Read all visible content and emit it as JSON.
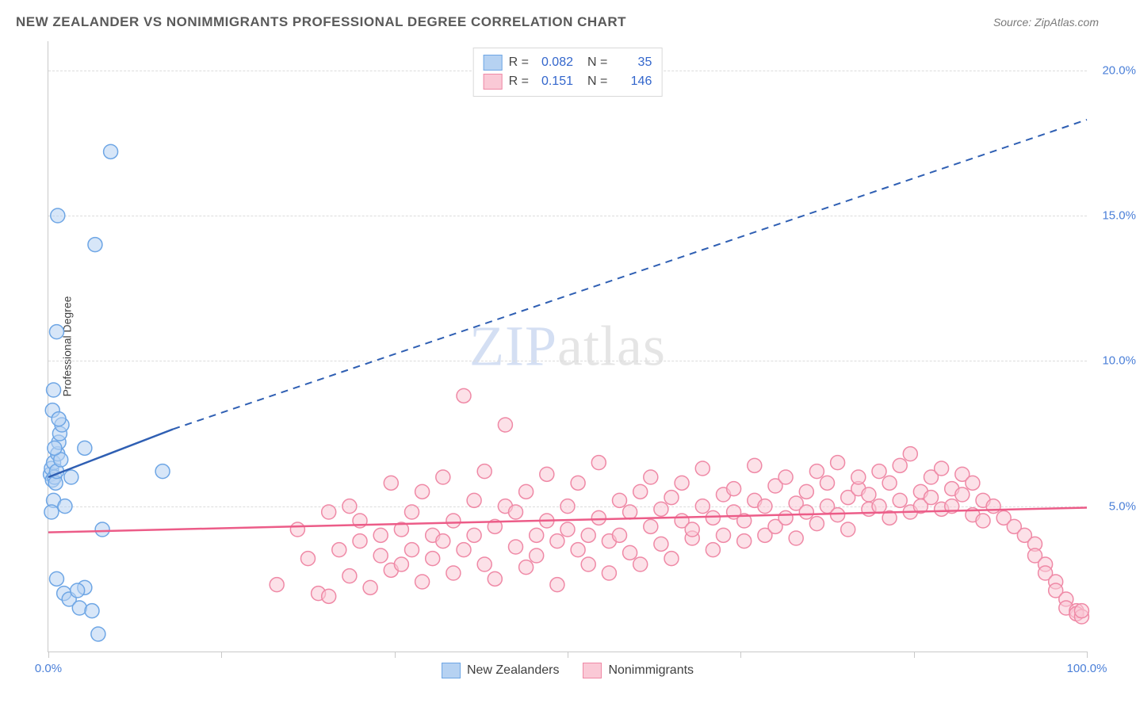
{
  "header": {
    "title": "NEW ZEALANDER VS NONIMMIGRANTS PROFESSIONAL DEGREE CORRELATION CHART",
    "source": "Source: ZipAtlas.com"
  },
  "watermark": {
    "prefix": "ZIP",
    "suffix": "atlas"
  },
  "chart": {
    "type": "scatter",
    "background_color": "#ffffff",
    "grid_color": "#dcdcdc",
    "border_color": "#c9c9c9",
    "xlim": [
      0,
      100
    ],
    "ylim": [
      0,
      21
    ],
    "x_ticks_major": [
      0,
      16.67,
      33.33,
      50,
      66.67,
      83.33,
      100
    ],
    "x_tick_labels": [
      {
        "pos": 0,
        "label": "0.0%"
      },
      {
        "pos": 100,
        "label": "100.0%"
      }
    ],
    "y_tick_labels": [
      {
        "pos": 5,
        "label": "5.0%"
      },
      {
        "pos": 10,
        "label": "10.0%"
      },
      {
        "pos": 15,
        "label": "15.0%"
      },
      {
        "pos": 20,
        "label": "20.0%"
      }
    ],
    "y_axis_label": "Professional Degree",
    "label_fontsize": 14,
    "tick_color": "#4a7fd8",
    "tick_fontsize": 15,
    "marker_radius": 9,
    "marker_stroke_width": 1.5,
    "series": [
      {
        "id": "nz",
        "name": "New Zealanders",
        "fill": "#b6d2f2",
        "stroke": "#6ea6e5",
        "fill_opacity": 0.55,
        "R": "0.082",
        "N": "35",
        "trend": {
          "solid": {
            "x1": 0,
            "y1": 6.0,
            "x2": 12,
            "y2": 7.65
          },
          "dashed": {
            "x1": 12,
            "y1": 7.65,
            "x2": 100,
            "y2": 18.3
          },
          "color": "#2f5fb3",
          "width": 2.5,
          "dash": "9,7"
        },
        "points": [
          [
            0.2,
            6.1
          ],
          [
            0.3,
            6.3
          ],
          [
            0.4,
            5.9
          ],
          [
            0.5,
            6.5
          ],
          [
            0.6,
            6.0
          ],
          [
            0.7,
            5.8
          ],
          [
            0.8,
            6.2
          ],
          [
            0.9,
            6.8
          ],
          [
            1.0,
            7.2
          ],
          [
            1.1,
            7.5
          ],
          [
            1.3,
            7.8
          ],
          [
            0.4,
            8.3
          ],
          [
            1.0,
            8.0
          ],
          [
            0.5,
            5.2
          ],
          [
            0.3,
            4.8
          ],
          [
            1.6,
            5.0
          ],
          [
            2.2,
            6.0
          ],
          [
            3.5,
            7.0
          ],
          [
            5.2,
            4.2
          ],
          [
            0.8,
            2.5
          ],
          [
            1.5,
            2.0
          ],
          [
            2.0,
            1.8
          ],
          [
            3.0,
            1.5
          ],
          [
            4.2,
            1.4
          ],
          [
            3.5,
            2.2
          ],
          [
            2.8,
            2.1
          ],
          [
            4.8,
            0.6
          ],
          [
            0.5,
            9.0
          ],
          [
            0.8,
            11.0
          ],
          [
            0.9,
            15.0
          ],
          [
            4.5,
            14.0
          ],
          [
            6.0,
            17.2
          ],
          [
            11.0,
            6.2
          ],
          [
            1.2,
            6.6
          ],
          [
            0.6,
            7.0
          ]
        ]
      },
      {
        "id": "ni",
        "name": "Nonimmigrants",
        "fill": "#fac9d6",
        "stroke": "#ef89a6",
        "fill_opacity": 0.55,
        "R": "0.151",
        "N": "146",
        "trend": {
          "solid": {
            "x1": 0,
            "y1": 4.1,
            "x2": 100,
            "y2": 4.95
          },
          "color": "#ec5c88",
          "width": 2.5
        },
        "points": [
          [
            22,
            2.3
          ],
          [
            24,
            4.2
          ],
          [
            25,
            3.2
          ],
          [
            26,
            2.0
          ],
          [
            27,
            4.8
          ],
          [
            27,
            1.9
          ],
          [
            28,
            3.5
          ],
          [
            29,
            5.0
          ],
          [
            29,
            2.6
          ],
          [
            30,
            3.8
          ],
          [
            30,
            4.5
          ],
          [
            31,
            2.2
          ],
          [
            32,
            4.0
          ],
          [
            32,
            3.3
          ],
          [
            33,
            5.8
          ],
          [
            33,
            2.8
          ],
          [
            34,
            4.2
          ],
          [
            34,
            3.0
          ],
          [
            35,
            3.5
          ],
          [
            35,
            4.8
          ],
          [
            36,
            2.4
          ],
          [
            36,
            5.5
          ],
          [
            37,
            3.2
          ],
          [
            37,
            4.0
          ],
          [
            38,
            6.0
          ],
          [
            38,
            3.8
          ],
          [
            39,
            4.5
          ],
          [
            39,
            2.7
          ],
          [
            40,
            8.8
          ],
          [
            40,
            3.5
          ],
          [
            41,
            4.0
          ],
          [
            41,
            5.2
          ],
          [
            42,
            3.0
          ],
          [
            42,
            6.2
          ],
          [
            43,
            4.3
          ],
          [
            43,
            2.5
          ],
          [
            44,
            5.0
          ],
          [
            44,
            7.8
          ],
          [
            45,
            3.6
          ],
          [
            45,
            4.8
          ],
          [
            46,
            2.9
          ],
          [
            46,
            5.5
          ],
          [
            47,
            4.0
          ],
          [
            47,
            3.3
          ],
          [
            48,
            6.1
          ],
          [
            48,
            4.5
          ],
          [
            49,
            3.8
          ],
          [
            49,
            2.3
          ],
          [
            50,
            5.0
          ],
          [
            50,
            4.2
          ],
          [
            51,
            3.5
          ],
          [
            51,
            5.8
          ],
          [
            52,
            4.0
          ],
          [
            52,
            3.0
          ],
          [
            53,
            4.6
          ],
          [
            53,
            6.5
          ],
          [
            54,
            3.8
          ],
          [
            54,
            2.7
          ],
          [
            55,
            5.2
          ],
          [
            55,
            4.0
          ],
          [
            56,
            3.4
          ],
          [
            56,
            4.8
          ],
          [
            57,
            5.5
          ],
          [
            57,
            3.0
          ],
          [
            58,
            4.3
          ],
          [
            58,
            6.0
          ],
          [
            59,
            3.7
          ],
          [
            59,
            4.9
          ],
          [
            60,
            5.3
          ],
          [
            60,
            3.2
          ],
          [
            61,
            4.5
          ],
          [
            61,
            5.8
          ],
          [
            62,
            3.9
          ],
          [
            62,
            4.2
          ],
          [
            63,
            5.0
          ],
          [
            63,
            6.3
          ],
          [
            64,
            4.6
          ],
          [
            64,
            3.5
          ],
          [
            65,
            5.4
          ],
          [
            65,
            4.0
          ],
          [
            66,
            4.8
          ],
          [
            66,
            5.6
          ],
          [
            67,
            3.8
          ],
          [
            67,
            4.5
          ],
          [
            68,
            5.2
          ],
          [
            68,
            6.4
          ],
          [
            69,
            4.0
          ],
          [
            69,
            5.0
          ],
          [
            70,
            4.3
          ],
          [
            70,
            5.7
          ],
          [
            71,
            6.0
          ],
          [
            71,
            4.6
          ],
          [
            72,
            5.1
          ],
          [
            72,
            3.9
          ],
          [
            73,
            4.8
          ],
          [
            73,
            5.5
          ],
          [
            74,
            6.2
          ],
          [
            74,
            4.4
          ],
          [
            75,
            5.0
          ],
          [
            75,
            5.8
          ],
          [
            76,
            4.7
          ],
          [
            76,
            6.5
          ],
          [
            77,
            5.3
          ],
          [
            77,
            4.2
          ],
          [
            78,
            5.6
          ],
          [
            78,
            6.0
          ],
          [
            79,
            4.9
          ],
          [
            79,
            5.4
          ],
          [
            80,
            6.2
          ],
          [
            80,
            5.0
          ],
          [
            81,
            4.6
          ],
          [
            81,
            5.8
          ],
          [
            82,
            6.4
          ],
          [
            82,
            5.2
          ],
          [
            83,
            4.8
          ],
          [
            83,
            6.8
          ],
          [
            84,
            5.5
          ],
          [
            84,
            5.0
          ],
          [
            85,
            6.0
          ],
          [
            85,
            5.3
          ],
          [
            86,
            4.9
          ],
          [
            86,
            6.3
          ],
          [
            87,
            5.6
          ],
          [
            87,
            5.0
          ],
          [
            88,
            6.1
          ],
          [
            88,
            5.4
          ],
          [
            89,
            4.7
          ],
          [
            89,
            5.8
          ],
          [
            90,
            5.2
          ],
          [
            90,
            4.5
          ],
          [
            91,
            5.0
          ],
          [
            92,
            4.6
          ],
          [
            93,
            4.3
          ],
          [
            94,
            4.0
          ],
          [
            95,
            3.7
          ],
          [
            95,
            3.3
          ],
          [
            96,
            3.0
          ],
          [
            96,
            2.7
          ],
          [
            97,
            2.4
          ],
          [
            97,
            2.1
          ],
          [
            98,
            1.8
          ],
          [
            98,
            1.5
          ],
          [
            99,
            1.4
          ],
          [
            99,
            1.3
          ],
          [
            99.5,
            1.2
          ],
          [
            99.5,
            1.4
          ]
        ]
      }
    ]
  },
  "legend_bottom": [
    {
      "swatch_fill": "#b6d2f2",
      "swatch_stroke": "#6ea6e5",
      "label": "New Zealanders"
    },
    {
      "swatch_fill": "#fac9d6",
      "swatch_stroke": "#ef89a6",
      "label": "Nonimmigrants"
    }
  ]
}
